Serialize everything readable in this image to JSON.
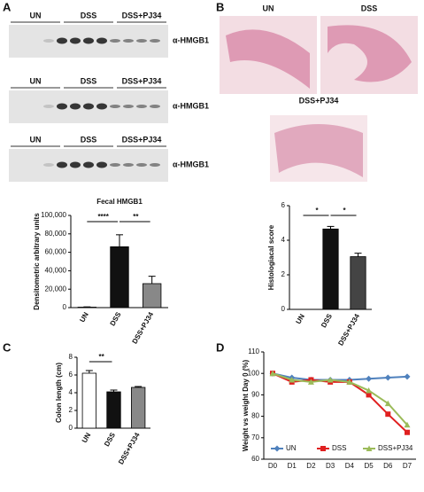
{
  "panel_labels": [
    "A",
    "B",
    "C",
    "D"
  ],
  "blots": [
    {
      "labels": [
        "UN",
        "DSS",
        "DSS+PJ34"
      ],
      "antibody": "α-HMGB1"
    },
    {
      "labels": [
        "UN",
        "DSS",
        "DSS+PJ34"
      ],
      "antibody": "α-HMGB1"
    },
    {
      "labels": [
        "UN",
        "DSS",
        "DSS+PJ34"
      ],
      "antibody": "α-HMGB1"
    }
  ],
  "histology": {
    "labels": [
      "UN",
      "DSS",
      "DSS+PJ34"
    ]
  },
  "chart_data": [
    {
      "type": "bar",
      "title": "Fecal HMGB1",
      "y_label": "Densitometric arbitrary units",
      "categories": [
        "UN",
        "DSS",
        "DSS+PJ34"
      ],
      "values": [
        500,
        66000,
        26000
      ],
      "errors": [
        300,
        13000,
        8000
      ],
      "colors": [
        "#111111",
        "#111111",
        "#888888"
      ],
      "ylim": [
        0,
        100000
      ],
      "yticks": [
        0,
        {
          "value": 20000,
          "label": "20,000"
        },
        {
          "value": 40000,
          "label": "40,000"
        },
        {
          "value": 60000,
          "label": "60,000"
        },
        {
          "value": 80000,
          "label": "80,000"
        },
        {
          "value": 100000,
          "label": "100,000"
        }
      ],
      "significance": [
        "****",
        "**"
      ]
    },
    {
      "type": "bar",
      "y_label": "Histologiacal score",
      "categories": [
        "UN",
        "DSS",
        "DSS+PJ34"
      ],
      "values": [
        0,
        4.65,
        3.05
      ],
      "errors": [
        0,
        0.15,
        0.2
      ],
      "colors": [
        "#111111",
        "#111111",
        "#444444"
      ],
      "ylim": [
        0,
        6
      ],
      "yticks": [
        0,
        2,
        4,
        6
      ],
      "significance": [
        "*",
        "*"
      ]
    },
    {
      "type": "bar",
      "y_label": "Colon length (cm)",
      "categories": [
        "UN",
        "DSS",
        "DSS+PJ34"
      ],
      "values": [
        6.2,
        4.1,
        4.6
      ],
      "errors": [
        0.3,
        0.2,
        0.1
      ],
      "colors": [
        "#ffffff",
        "#111111",
        "#888888"
      ],
      "ylim": [
        0,
        8
      ],
      "yticks": [
        0,
        2,
        4,
        6,
        8
      ],
      "significance": [
        "**"
      ]
    },
    {
      "type": "line",
      "y_label": "Weight vs weight Day 0 (%)",
      "categories": [
        "D0",
        "D1",
        "D2",
        "D3",
        "D4",
        "D5",
        "D6",
        "D7"
      ],
      "series": [
        {
          "name": "UN",
          "color": "#4f81bd",
          "marker": "diamond",
          "values": [
            100,
            98,
            97,
            97,
            97,
            97.5,
            98,
            98.5
          ]
        },
        {
          "name": "DSS",
          "color": "#e02020",
          "marker": "square",
          "values": [
            100,
            96,
            97,
            96,
            96,
            90,
            81,
            72.5
          ]
        },
        {
          "name": "DSS+PJ34",
          "color": "#9bbb59",
          "marker": "triangle",
          "values": [
            100,
            97,
            96,
            97,
            96,
            92,
            86,
            76
          ]
        }
      ],
      "ylim": [
        60,
        110
      ],
      "yticks": [
        60,
        70,
        80,
        90,
        100,
        110
      ],
      "legend": "bottom"
    }
  ]
}
